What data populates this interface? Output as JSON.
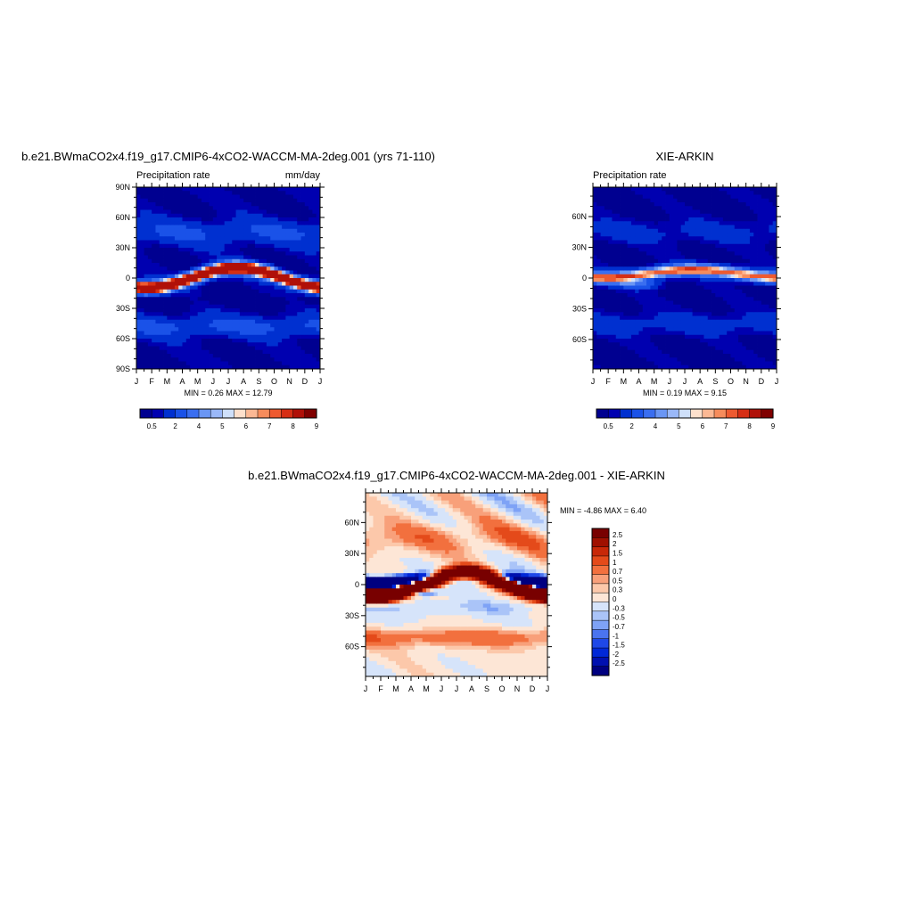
{
  "chart_data": [
    {
      "type": "heatmap",
      "title": "b.e21.BWmaCO2x4.f19_g17.CMIP6-4xCO2-WACCM-MA-2deg.001 (yrs 71-110)",
      "left_label": "Precipitation rate",
      "right_label": "mm/day",
      "x_ticks": [
        "J",
        "F",
        "M",
        "A",
        "M",
        "J",
        "J",
        "A",
        "S",
        "O",
        "N",
        "D",
        "J"
      ],
      "y_ticks": [
        "90N",
        "60N",
        "30N",
        "0",
        "30S",
        "60S",
        "90S"
      ],
      "y_tick_values": [
        90,
        60,
        30,
        0,
        -30,
        -60,
        -90
      ],
      "ylim": [
        -90,
        90
      ],
      "min": 0.26,
      "max": 12.79,
      "stats_text": "MIN =   0.26 MAX =  12.79",
      "colorbar_labels": [
        "0.5",
        "2",
        "4",
        "5",
        "6",
        "7",
        "8",
        "9"
      ],
      "colorbar_levels": [
        0.5,
        1,
        2,
        3,
        4,
        5,
        5.5,
        6,
        6.5,
        7,
        7.5,
        8,
        9
      ],
      "itcz_amplitude": 10
    },
    {
      "type": "heatmap",
      "title": "XIE-ARKIN",
      "left_label": "Precipitation rate",
      "right_label": "",
      "x_ticks": [
        "J",
        "F",
        "M",
        "A",
        "M",
        "J",
        "J",
        "A",
        "S",
        "O",
        "N",
        "D",
        "J"
      ],
      "y_ticks": [
        "60N",
        "30N",
        "0",
        "30S",
        "60S"
      ],
      "y_tick_values": [
        60,
        30,
        0,
        -30,
        -60
      ],
      "ylim": [
        -88.75,
        88.75
      ],
      "min": 0.19,
      "max": 9.15,
      "stats_text": "MIN =   0.19 MAX =   9.15",
      "colorbar_labels": [
        "0.5",
        "2",
        "4",
        "5",
        "6",
        "7",
        "8",
        "9"
      ],
      "colorbar_levels": [
        0.5,
        1,
        2,
        3,
        4,
        5,
        5.5,
        6,
        6.5,
        7,
        7.5,
        8,
        9
      ],
      "itcz_amplitude": 4
    },
    {
      "type": "heatmap",
      "title": "b.e21.BWmaCO2x4.f19_g17.CMIP6-4xCO2-WACCM-MA-2deg.001 - XIE-ARKIN",
      "x_ticks": [
        "J",
        "F",
        "M",
        "A",
        "M",
        "J",
        "J",
        "A",
        "S",
        "O",
        "N",
        "D",
        "J"
      ],
      "y_ticks": [
        "60N",
        "30N",
        "0",
        "30S",
        "60S"
      ],
      "y_tick_values": [
        60,
        30,
        0,
        -30,
        -60
      ],
      "ylim": [
        -88.75,
        88.75
      ],
      "min": -4.86,
      "max": 6.4,
      "stats_text": "MIN =  -4.86 MAX =   6.40",
      "colorbar_labels": [
        "2.5",
        "2",
        "1.5",
        "1",
        "0.7",
        "0.5",
        "0.3",
        "0",
        "-0.3",
        "-0.5",
        "-0.7",
        "-1",
        "-1.5",
        "-2",
        "-2.5"
      ],
      "colorbar_levels": [
        -2.5,
        -2,
        -1.5,
        -1,
        -0.7,
        -0.5,
        -0.3,
        0,
        0.3,
        0.5,
        0.7,
        1,
        1.5,
        2,
        2.5
      ]
    }
  ],
  "colors": {
    "seq": [
      "#000090",
      "#0000b0",
      "#0030d0",
      "#1a52e8",
      "#3a6ef0",
      "#6a96f4",
      "#9ab8f8",
      "#cfe0fa",
      "#fde0cc",
      "#fbb894",
      "#f68c5c",
      "#ee5a30",
      "#d62e14",
      "#b01008",
      "#800000"
    ],
    "div": [
      "#000080",
      "#0010b0",
      "#0028d8",
      "#1e48e8",
      "#4a74f0",
      "#7ea2f6",
      "#aac4f8",
      "#d6e4fa",
      "#fde6d6",
      "#fcc8aa",
      "#f8a07a",
      "#f2703e",
      "#e44a1a",
      "#c82808",
      "#a01000",
      "#780000"
    ]
  }
}
